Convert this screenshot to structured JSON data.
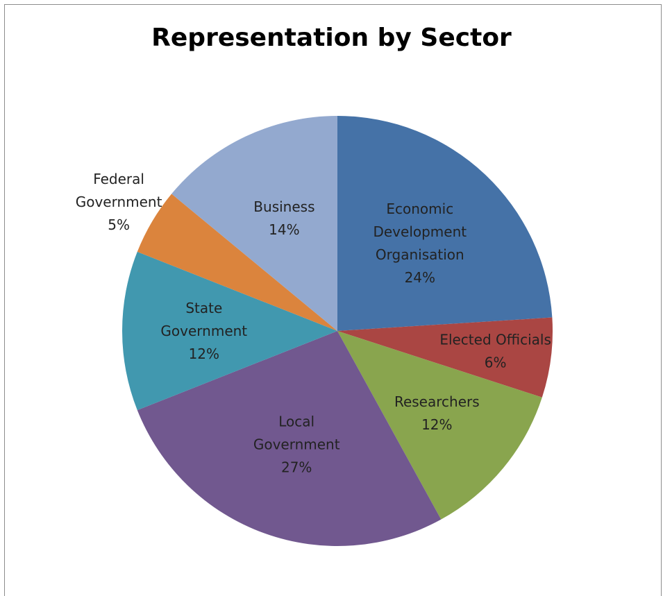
{
  "chart_data": {
    "type": "pie",
    "title": "Representation by Sector",
    "slices": [
      {
        "label_lines": [
          "Economic",
          "Development",
          "Organisation"
        ],
        "percent_text": "24%",
        "value": 24,
        "color": "#4572a7"
      },
      {
        "label_lines": [
          "Elected Officials"
        ],
        "percent_text": "6%",
        "value": 6,
        "color": "#aa4643"
      },
      {
        "label_lines": [
          "Researchers"
        ],
        "percent_text": "12%",
        "value": 12,
        "color": "#89a54e"
      },
      {
        "label_lines": [
          "Local",
          "Government"
        ],
        "percent_text": "27%",
        "value": 27,
        "color": "#71588f"
      },
      {
        "label_lines": [
          "State",
          "Government"
        ],
        "percent_text": "12%",
        "value": 12,
        "color": "#4198af"
      },
      {
        "label_lines": [
          "Federal",
          "Government"
        ],
        "percent_text": "5%",
        "value": 5,
        "color": "#db843d"
      },
      {
        "label_lines": [
          "Business"
        ],
        "percent_text": "14%",
        "value": 14,
        "color": "#93a9cf"
      }
    ],
    "start_angle": "12 o'clock",
    "direction": "clockwise",
    "legend": "none"
  }
}
